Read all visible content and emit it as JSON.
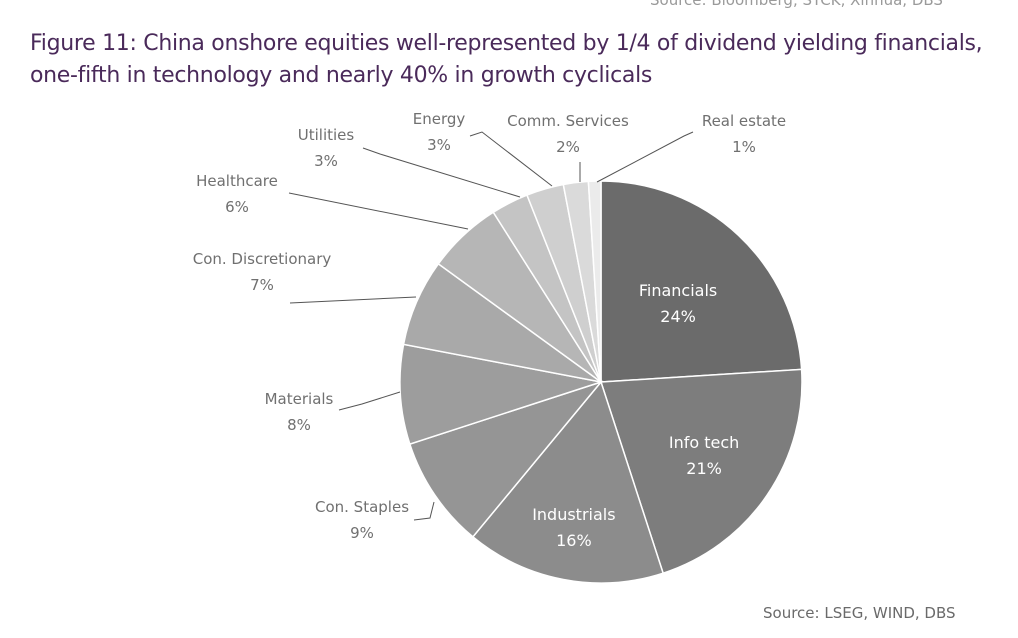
{
  "top_source_text": "Source: Bloomberg, STCK, Xinhua, DBS",
  "title_line1": "Figure 11: China onshore equities well-represented by 1/4 of dividend yielding financials,",
  "title_line2": "one-fifth in technology and nearly 40% in growth cyclicals",
  "source": "Source: LSEG, WIND, DBS",
  "chart_data": {
    "type": "pie",
    "title": "",
    "slices": [
      {
        "label": "Financials",
        "value": 24,
        "value_label": "24%",
        "color": "#6b6b6b",
        "text_color": "#ffffff"
      },
      {
        "label": "Info tech",
        "value": 21,
        "value_label": "21%",
        "color": "#7d7d7d",
        "text_color": "#ffffff"
      },
      {
        "label": "Industrials",
        "value": 16,
        "value_label": "16%",
        "color": "#8c8c8c",
        "text_color": "#ffffff"
      },
      {
        "label": "Con. Staples",
        "value": 9,
        "value_label": "9%",
        "color": "#959595",
        "text_color": "#707070"
      },
      {
        "label": "Materials",
        "value": 8,
        "value_label": "8%",
        "color": "#9d9d9d",
        "text_color": "#707070"
      },
      {
        "label": "Con. Discretionary",
        "value": 7,
        "value_label": "7%",
        "color": "#a9a9a9",
        "text_color": "#707070"
      },
      {
        "label": "Healthcare",
        "value": 6,
        "value_label": "6%",
        "color": "#b6b6b6",
        "text_color": "#707070"
      },
      {
        "label": "Utilities",
        "value": 3,
        "value_label": "3%",
        "color": "#c4c4c4",
        "text_color": "#707070"
      },
      {
        "label": "Energy",
        "value": 3,
        "value_label": "3%",
        "color": "#cfcfcf",
        "text_color": "#707070"
      },
      {
        "label": "Comm. Services",
        "value": 2,
        "value_label": "2%",
        "color": "#dadada",
        "text_color": "#707070"
      },
      {
        "label": "Real estate",
        "value": 1,
        "value_label": "1%",
        "color": "#ebebeb",
        "text_color": "#707070"
      }
    ]
  }
}
